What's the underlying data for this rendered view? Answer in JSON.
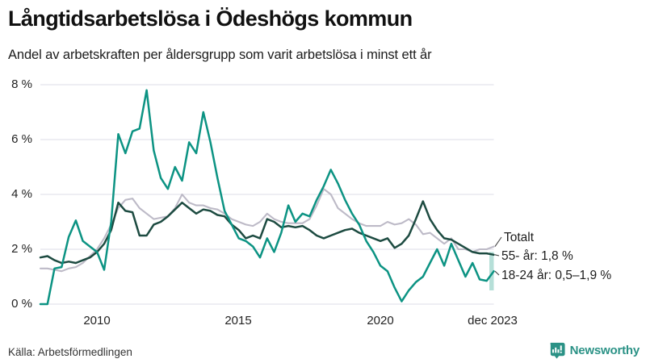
{
  "header": {
    "title": "Långtidsarbetslösa i Ödeshögs kommun",
    "subtitle": "Andel av arbetskraften per åldersgrupp som varit arbetslösa i minst ett år"
  },
  "source": {
    "text": "Källa: Arbetsförmedlingen"
  },
  "branding": {
    "name": "Newsworthy",
    "color": "#2b9286"
  },
  "colors": {
    "grid": "#e4e4ec",
    "leader_line": "#444444",
    "totalt": "#bdbac7",
    "older": "#1d4b41",
    "young": "#0c9383",
    "young_band": "#aedcd4"
  },
  "chart_data": {
    "type": "line",
    "title": "Långtidsarbetslösa i Ödeshögs kommun",
    "subtitle": "Andel av arbetskraften per åldersgrupp som varit arbetslösa i minst ett år",
    "unit": "%",
    "grid": true,
    "legend_position": "right-end-annotations",
    "x_start": 2008.0,
    "x_step": 0.25,
    "x_end": 2024.0,
    "x_end_meaning": "dec 2023",
    "ylim": [
      0,
      8
    ],
    "yticks": [
      0,
      2,
      4,
      6,
      8
    ],
    "ytick_labels": [
      "0 %",
      "2 %",
      "4 %",
      "6 %",
      "8 %"
    ],
    "xticks": [
      2010,
      2015,
      2020,
      2024
    ],
    "xtick_labels": [
      "2010",
      "2015",
      "2020",
      "dec 2023"
    ],
    "series": [
      {
        "name": "Totalt",
        "label": "Totalt",
        "color": "#bdbac7",
        "values": [
          1.3,
          1.3,
          1.25,
          1.2,
          1.3,
          1.35,
          1.5,
          1.75,
          2.0,
          2.4,
          2.9,
          3.5,
          3.8,
          3.85,
          3.5,
          3.3,
          3.1,
          3.15,
          3.2,
          3.5,
          4.0,
          3.7,
          3.6,
          3.6,
          3.5,
          3.45,
          3.3,
          3.1,
          3.0,
          2.9,
          2.85,
          3.0,
          3.3,
          3.1,
          3.0,
          2.95,
          2.95,
          2.95,
          3.1,
          3.6,
          4.2,
          4.0,
          3.5,
          3.3,
          3.1,
          2.95,
          2.85,
          2.85,
          2.85,
          3.0,
          2.9,
          2.95,
          3.1,
          2.9,
          2.55,
          2.6,
          2.4,
          2.2,
          2.4,
          2.0,
          2.0,
          1.9,
          2.0,
          2.0,
          2.1
        ]
      },
      {
        "name": "55- år",
        "label": "55- år: 1,8 %",
        "color": "#1d4b41",
        "last_value_text": "1,8 %",
        "values": [
          1.7,
          1.75,
          1.6,
          1.5,
          1.55,
          1.5,
          1.6,
          1.7,
          1.9,
          2.2,
          2.7,
          3.7,
          3.4,
          3.35,
          2.5,
          2.5,
          2.9,
          3.0,
          3.2,
          3.45,
          3.7,
          3.5,
          3.3,
          3.45,
          3.4,
          3.25,
          3.2,
          2.9,
          2.7,
          2.4,
          2.5,
          2.4,
          3.1,
          3.0,
          2.8,
          2.85,
          2.8,
          2.85,
          2.7,
          2.5,
          2.4,
          2.5,
          2.6,
          2.7,
          2.75,
          2.6,
          2.5,
          2.4,
          2.3,
          2.4,
          2.05,
          2.2,
          2.5,
          3.1,
          3.75,
          3.1,
          2.7,
          2.4,
          2.35,
          2.2,
          2.05,
          1.9,
          1.85,
          1.85,
          1.8
        ]
      },
      {
        "name": "18-24 år",
        "label": "18-24 år: 0,5–1,9 %",
        "color": "#0c9383",
        "last_value_text": "0,5–1,9 %",
        "end_range": {
          "low": 0.5,
          "high": 1.9,
          "band_color": "#aedcd4"
        },
        "values": [
          0.0,
          0.0,
          1.3,
          1.35,
          2.45,
          3.05,
          2.3,
          2.1,
          1.9,
          1.25,
          3.0,
          6.2,
          5.5,
          6.3,
          6.4,
          7.8,
          5.6,
          4.6,
          4.2,
          5.0,
          4.5,
          5.9,
          5.5,
          7.0,
          5.9,
          4.6,
          3.4,
          2.9,
          2.4,
          2.3,
          2.1,
          1.7,
          2.4,
          1.9,
          2.6,
          3.6,
          3.0,
          3.3,
          3.2,
          3.8,
          4.3,
          4.9,
          4.4,
          3.8,
          3.3,
          2.9,
          2.3,
          1.9,
          1.4,
          1.2,
          0.6,
          0.1,
          0.5,
          0.8,
          1.0,
          1.5,
          2.0,
          1.4,
          2.2,
          1.6,
          1.0,
          1.5,
          0.9,
          0.85,
          1.2
        ]
      }
    ]
  }
}
